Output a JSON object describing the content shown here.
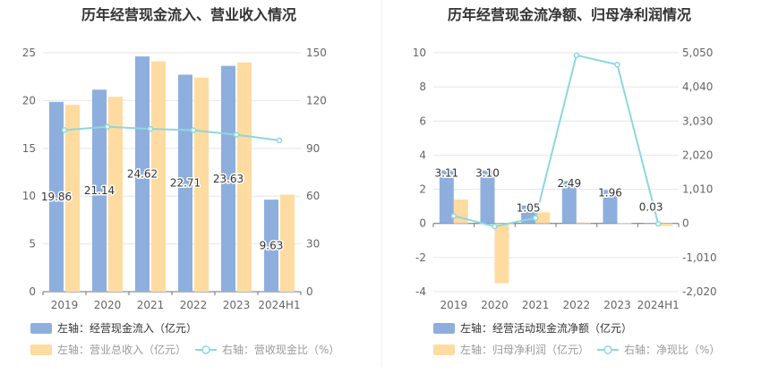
{
  "chart_data": [
    {
      "type": "bar",
      "title": "历年经营现金流入、营业收入情况",
      "categories": [
        "2019",
        "2020",
        "2021",
        "2022",
        "2023",
        "2024H1"
      ],
      "left_axis": {
        "ticks": [
          "0",
          "5",
          "10",
          "15",
          "20",
          "25"
        ],
        "range": [
          0,
          25
        ]
      },
      "right_axis": {
        "ticks": [
          "0",
          "30",
          "60",
          "90",
          "120",
          "150"
        ],
        "range": [
          0,
          150
        ]
      },
      "grid": true,
      "legend_position": "bottom",
      "series": [
        {
          "name": "左轴：经营现金流入（亿元）",
          "type": "bar",
          "axis": "left",
          "color": "#8eafdd",
          "values": [
            19.86,
            21.14,
            24.62,
            22.71,
            23.63,
            9.63
          ],
          "labels": [
            "19.86",
            "21.14",
            "24.62",
            "22.71",
            "23.63",
            "9.63"
          ]
        },
        {
          "name": "左轴：营业总收入（亿元）",
          "type": "bar",
          "axis": "left",
          "color": "#fedba0",
          "values": [
            19.55,
            20.4,
            24.1,
            22.4,
            24.0,
            10.15
          ]
        },
        {
          "name": "右轴：营收现金比（%）",
          "type": "line",
          "axis": "right",
          "color": "#8ed7dc",
          "values": [
            101.5,
            103.6,
            102.2,
            101.4,
            98.5,
            95.0
          ]
        }
      ]
    },
    {
      "type": "bar",
      "title": "历年经营现金流净额、归母净利润情况",
      "categories": [
        "2019",
        "2020",
        "2021",
        "2022",
        "2023",
        "2024H1"
      ],
      "left_axis": {
        "ticks": [
          "-4",
          "-2",
          "0",
          "2",
          "4",
          "6",
          "8",
          "10"
        ],
        "range": [
          -4,
          10
        ]
      },
      "right_axis": {
        "ticks": [
          "-2,020",
          "-1,010",
          "0",
          "1,010",
          "2,020",
          "3,030",
          "4,040",
          "5,050"
        ],
        "range": [
          -2020,
          5050
        ]
      },
      "grid": true,
      "legend_position": "bottom",
      "series": [
        {
          "name": "左轴：经营活动现金流净额（亿元）",
          "type": "bar",
          "axis": "left",
          "color": "#8eafdd",
          "values": [
            3.11,
            3.1,
            1.05,
            2.49,
            1.96,
            0.03
          ],
          "labels": [
            "3.11",
            "3.10",
            "1.05",
            "2.49",
            "1.96",
            "0.03"
          ]
        },
        {
          "name": "左轴：归母净利润（亿元）",
          "type": "bar",
          "axis": "left",
          "color": "#fedba0",
          "values": [
            1.4,
            -3.5,
            0.65,
            0.05,
            0.02,
            -0.15
          ]
        },
        {
          "name": "右轴：净现比（%）",
          "type": "line",
          "axis": "right",
          "color": "#8ed7dc",
          "values": [
            222,
            -89,
            162,
            4980,
            4700,
            -10
          ]
        }
      ]
    }
  ]
}
